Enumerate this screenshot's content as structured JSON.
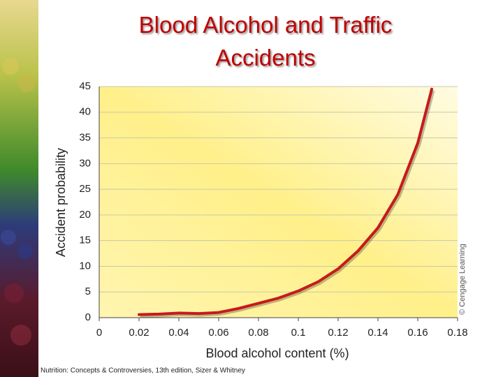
{
  "chart_data": {
    "type": "line",
    "title": "Blood Alcohol and Traffic Accidents",
    "x_label": "Blood alcohol content (%)",
    "y_label": "Accident probability",
    "credit": "© Cengage Learning",
    "footer": "Nutrition: Concepts & Controversies, 13th edition, Sizer & Whitney",
    "x": [
      0.02,
      0.03,
      0.04,
      0.05,
      0.06,
      0.07,
      0.08,
      0.09,
      0.1,
      0.11,
      0.12,
      0.13,
      0.14,
      0.15,
      0.16,
      0.167
    ],
    "series": [
      {
        "name": "Accident probability",
        "color": "#c8191c",
        "values": [
          0.6,
          0.7,
          0.9,
          0.8,
          1.0,
          1.8,
          2.8,
          3.8,
          5.2,
          7.0,
          9.5,
          13,
          17.5,
          24,
          34,
          44.5
        ]
      }
    ],
    "xlim": [
      0,
      0.18
    ],
    "xticks": [
      0,
      0.02,
      0.04,
      0.06,
      0.08,
      0.1,
      0.12,
      0.14,
      0.16,
      0.18
    ],
    "ylim": [
      0,
      45
    ],
    "yticks": [
      0,
      5,
      10,
      15,
      20,
      25,
      30,
      35,
      40,
      45
    ],
    "grid": true
  }
}
